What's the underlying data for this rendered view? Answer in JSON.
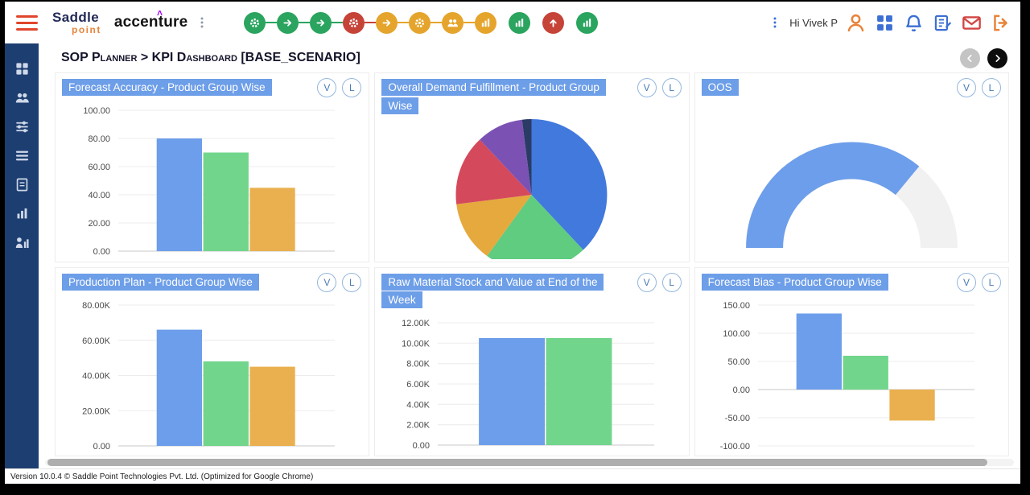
{
  "topbar": {
    "brand": {
      "saddle": "Saddle",
      "point": "point",
      "accenture": "accenture",
      "accenture_mark": ">"
    },
    "greeting": "Hi Vivek P",
    "workflow": [
      {
        "icon": "gear",
        "color": "#2aa45e",
        "linked": false
      },
      {
        "icon": "arrow",
        "color": "#2aa45e",
        "linked": true
      },
      {
        "icon": "arrow",
        "color": "#2aa45e",
        "linked": true
      },
      {
        "icon": "gear",
        "color": "#c64338",
        "linked": true
      },
      {
        "icon": "arrow",
        "color": "#e5a42c",
        "linked": true
      },
      {
        "icon": "gear",
        "color": "#e5a42c",
        "linked": true
      },
      {
        "icon": "users",
        "color": "#e5a42c",
        "linked": true
      },
      {
        "icon": "chart",
        "color": "#e5a42c",
        "linked": true
      },
      {
        "icon": "chart",
        "color": "#2aa45e",
        "linked": false
      },
      {
        "icon": "up",
        "color": "#c64338",
        "linked": false
      },
      {
        "icon": "chart",
        "color": "#2aa45e",
        "linked": false
      }
    ],
    "right_icons": [
      {
        "icon": "person",
        "color": "#e8833a"
      },
      {
        "icon": "grid-apps",
        "color": "#3b6fd4"
      },
      {
        "icon": "bell",
        "color": "#3b6fd4"
      },
      {
        "icon": "note",
        "color": "#3b6fd4"
      },
      {
        "icon": "mail",
        "color": "#d24545"
      },
      {
        "icon": "logout",
        "color": "#e8833a"
      }
    ]
  },
  "sidebar": {
    "icons": [
      "dashboard",
      "users",
      "sliders",
      "list",
      "document",
      "chart",
      "user-chart"
    ]
  },
  "breadcrumb": {
    "text": "SOP Planner > KPI Dashboard [BASE_SCENARIO]"
  },
  "controls": {
    "view": "V",
    "legend": "L"
  },
  "cards": [
    {
      "title": "Forecast Accuracy - Product Group Wise"
    },
    {
      "title": "Overall Demand Fulfillment - Product Group Wise"
    },
    {
      "title": "OOS"
    },
    {
      "title": "Production Plan - Product Group Wise"
    },
    {
      "title": "Raw Material Stock and Value at End of the Week"
    },
    {
      "title": "Forecast Bias - Product Group Wise"
    }
  ],
  "chart_data": [
    {
      "type": "bar",
      "title": "Forecast Accuracy - Product Group Wise",
      "values": [
        80,
        70,
        45
      ],
      "colors": [
        "#6d9eeb",
        "#72d58c",
        "#eab04f"
      ],
      "ylim": [
        0,
        100
      ],
      "yticks": [
        {
          "v": 100,
          "label": "100.00"
        },
        {
          "v": 80,
          "label": "80.00"
        },
        {
          "v": 60,
          "label": "60.00"
        },
        {
          "v": 40,
          "label": "40.00"
        },
        {
          "v": 20,
          "label": "20.00"
        },
        {
          "v": 0,
          "label": "0.00"
        }
      ]
    },
    {
      "type": "pie",
      "title": "Overall Demand Fulfillment - Product Group Wise",
      "slices": [
        {
          "color": "#4179dd",
          "value": 38
        },
        {
          "color": "#5fcc80",
          "value": 22
        },
        {
          "color": "#e5a93e",
          "value": 13
        },
        {
          "color": "#d5495c",
          "value": 15
        },
        {
          "color": "#7b52b4",
          "value": 10
        },
        {
          "color": "#2a3b66",
          "value": 2
        }
      ]
    },
    {
      "type": "gauge",
      "title": "OOS",
      "value": 72,
      "max": 100,
      "color": "#6d9eeb",
      "track": "#f1f1f1"
    },
    {
      "type": "bar",
      "title": "Production Plan - Product Group Wise",
      "values": [
        66000,
        48000,
        45000
      ],
      "colors": [
        "#6d9eeb",
        "#72d58c",
        "#eab04f"
      ],
      "ylim": [
        0,
        80000
      ],
      "yticks": [
        {
          "v": 80000,
          "label": "80.00K"
        },
        {
          "v": 60000,
          "label": "60.00K"
        },
        {
          "v": 40000,
          "label": "40.00K"
        },
        {
          "v": 20000,
          "label": "20.00K"
        },
        {
          "v": 0,
          "label": "0.00"
        }
      ]
    },
    {
      "type": "bar",
      "title": "Raw Material Stock and Value at End of the Week",
      "values": [
        10500,
        10500
      ],
      "colors": [
        "#6d9eeb",
        "#72d58c"
      ],
      "ylim": [
        0,
        12000
      ],
      "yticks": [
        {
          "v": 12000,
          "label": "12.00K"
        },
        {
          "v": 10000,
          "label": "10.00K"
        },
        {
          "v": 8000,
          "label": "8.00K"
        },
        {
          "v": 6000,
          "label": "6.00K"
        },
        {
          "v": 4000,
          "label": "4.00K"
        },
        {
          "v": 2000,
          "label": "2.00K"
        },
        {
          "v": 0,
          "label": "0.00"
        }
      ]
    },
    {
      "type": "bar",
      "title": "Forecast Bias - Product Group Wise",
      "values": [
        135,
        60,
        -55
      ],
      "colors": [
        "#6d9eeb",
        "#72d58c",
        "#eab04f"
      ],
      "ylim": [
        -100,
        150
      ],
      "yticks": [
        {
          "v": 150,
          "label": "150.00"
        },
        {
          "v": 100,
          "label": "100.00"
        },
        {
          "v": 50,
          "label": "50.00"
        },
        {
          "v": 0,
          "label": "0.00"
        },
        {
          "v": -50,
          "label": "-50.00"
        },
        {
          "v": -100,
          "label": "-100.00"
        }
      ]
    }
  ],
  "footer": {
    "version_text": "Version 10.0.4 © Saddle Point Technologies Pvt. Ltd.  (Optimized for Google Chrome)"
  },
  "colors": {
    "title_bg": "#6d9ee8",
    "sidebar_bg": "#1d3e70",
    "bar_blue": "#6d9eeb",
    "bar_green": "#72d58c",
    "bar_orange": "#eab04f"
  }
}
